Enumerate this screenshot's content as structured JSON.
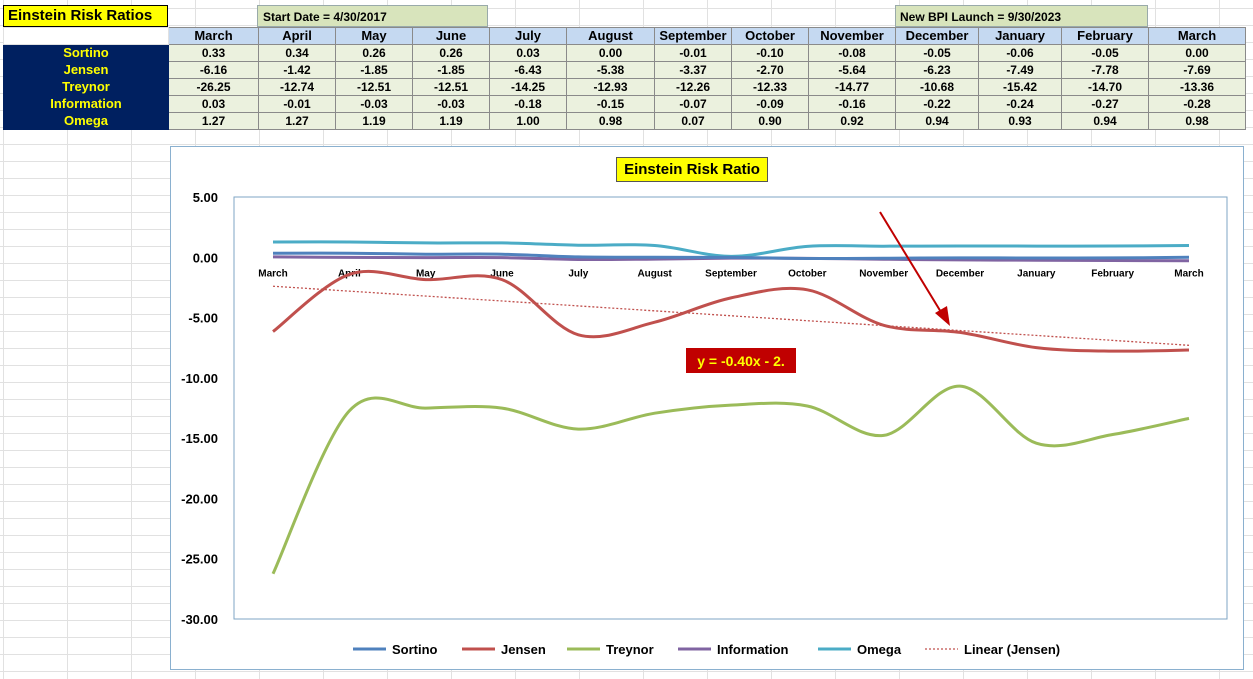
{
  "sheet": {
    "title": "Einstein Risk Ratios",
    "start_date": "Start Date = 4/30/2017",
    "launch": "New BPI Launch = 9/30/2023",
    "months": [
      "March",
      "April",
      "May",
      "June",
      "July",
      "August",
      "September",
      "October",
      "November",
      "December",
      "January",
      "February",
      "March"
    ],
    "rows": [
      {
        "label": "Sortino",
        "values": [
          "0.33",
          "0.34",
          "0.26",
          "0.26",
          "0.03",
          "0.00",
          "-0.01",
          "-0.10",
          "-0.08",
          "-0.05",
          "-0.06",
          "-0.05",
          "0.00"
        ]
      },
      {
        "label": "Jensen",
        "values": [
          "-6.16",
          "-1.42",
          "-1.85",
          "-1.85",
          "-6.43",
          "-5.38",
          "-3.37",
          "-2.70",
          "-5.64",
          "-6.23",
          "-7.49",
          "-7.78",
          "-7.69"
        ]
      },
      {
        "label": "Treynor",
        "values": [
          "-26.25",
          "-12.74",
          "-12.51",
          "-12.51",
          "-14.25",
          "-12.93",
          "-12.26",
          "-12.33",
          "-14.77",
          "-10.68",
          "-15.42",
          "-14.70",
          "-13.36"
        ]
      },
      {
        "label": "Information",
        "values": [
          "0.03",
          "-0.01",
          "-0.03",
          "-0.03",
          "-0.18",
          "-0.15",
          "-0.07",
          "-0.09",
          "-0.16",
          "-0.22",
          "-0.24",
          "-0.27",
          "-0.28"
        ]
      },
      {
        "label": "Omega",
        "values": [
          "1.27",
          "1.27",
          "1.19",
          "1.19",
          "1.00",
          "0.98",
          "0.07",
          "0.90",
          "0.92",
          "0.94",
          "0.93",
          "0.94",
          "0.98"
        ]
      }
    ]
  },
  "chart_data": {
    "type": "line",
    "title": "Einstein Risk Ratio",
    "categories": [
      "March",
      "April",
      "May",
      "June",
      "July",
      "August",
      "September",
      "October",
      "November",
      "December",
      "January",
      "February",
      "March"
    ],
    "ylim": [
      -30,
      5
    ],
    "yticks": [
      "5.00",
      "0.00",
      "-5.00",
      "-10.00",
      "-15.00",
      "-20.00",
      "-25.00",
      "-30.00"
    ],
    "series": [
      {
        "name": "Sortino",
        "color": "#4f81bd",
        "values": [
          0.33,
          0.34,
          0.26,
          0.26,
          0.03,
          0.0,
          -0.01,
          -0.1,
          -0.08,
          -0.05,
          -0.06,
          -0.05,
          0.0
        ]
      },
      {
        "name": "Jensen",
        "color": "#c0504d",
        "values": [
          -6.16,
          -1.42,
          -1.85,
          -1.85,
          -6.43,
          -5.38,
          -3.37,
          -2.7,
          -5.64,
          -6.23,
          -7.49,
          -7.78,
          -7.69
        ]
      },
      {
        "name": "Treynor",
        "color": "#9bbb59",
        "values": [
          -26.25,
          -12.74,
          -12.51,
          -12.51,
          -14.25,
          -12.93,
          -12.26,
          -12.33,
          -14.77,
          -10.68,
          -15.42,
          -14.7,
          -13.36
        ]
      },
      {
        "name": "Information",
        "color": "#8064a2",
        "values": [
          0.03,
          -0.01,
          -0.03,
          -0.03,
          -0.18,
          -0.15,
          -0.07,
          -0.09,
          -0.16,
          -0.22,
          -0.24,
          -0.27,
          -0.28
        ]
      },
      {
        "name": "Omega",
        "color": "#4bacc6",
        "values": [
          1.27,
          1.27,
          1.19,
          1.19,
          1.0,
          0.98,
          0.07,
          0.9,
          0.92,
          0.94,
          0.93,
          0.94,
          0.98
        ]
      }
    ],
    "trendline": {
      "name": "Linear (Jensen)",
      "color": "#c0504d",
      "start": -2.4,
      "end": -7.3
    },
    "annotation": {
      "text": "y = -0.40x - 2.",
      "bg": "#c00000",
      "fg": "#ffff00"
    },
    "legend": "bottom",
    "grid": false
  }
}
